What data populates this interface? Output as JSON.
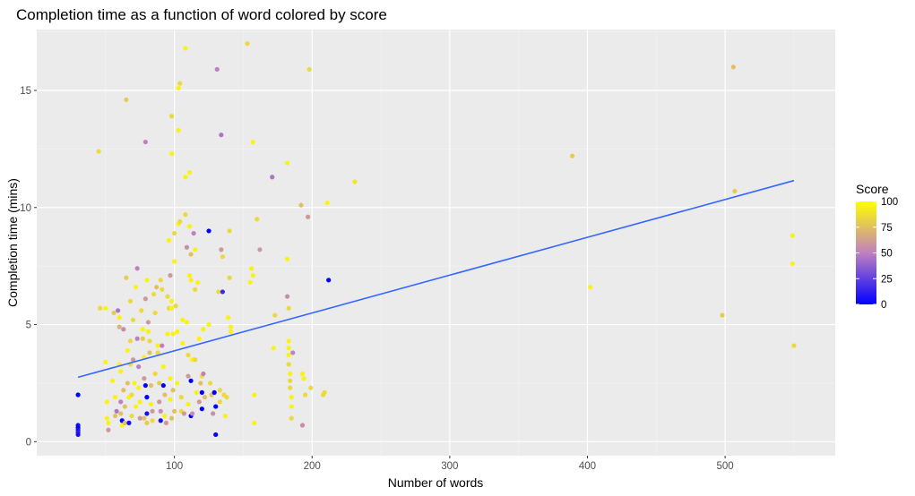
{
  "chart_data": {
    "type": "scatter",
    "title": "Completion time as a function of word colored by score",
    "xlabel": "Number of words",
    "ylabel": "Completion time (mins)",
    "xlim": [
      0,
      580
    ],
    "ylim": [
      -0.6,
      17.6
    ],
    "x_ticks": [
      100,
      200,
      300,
      400,
      500
    ],
    "y_ticks": [
      0,
      5,
      10,
      15
    ],
    "grid": true,
    "legend": {
      "title": "Score",
      "placement": "right",
      "ticks": [
        0,
        25,
        50,
        75,
        100
      ],
      "range": [
        0,
        100
      ],
      "colors": {
        "low": "#0000ff",
        "mid": "#c080c0",
        "high": "#ffff00"
      }
    },
    "trend_line": {
      "color": "#3366ff",
      "x": [
        30,
        550
      ],
      "y": [
        2.75,
        11.15
      ]
    },
    "points": [
      {
        "x": 30,
        "y": 2.0,
        "s": 0
      },
      {
        "x": 30,
        "y": 0.7,
        "s": 5
      },
      {
        "x": 30,
        "y": 0.6,
        "s": 0
      },
      {
        "x": 30,
        "y": 0.5,
        "s": 5
      },
      {
        "x": 30,
        "y": 0.4,
        "s": 10
      },
      {
        "x": 30,
        "y": 0.3,
        "s": 5
      },
      {
        "x": 45,
        "y": 12.4,
        "s": 85
      },
      {
        "x": 46,
        "y": 5.7,
        "s": 85
      },
      {
        "x": 50,
        "y": 5.7,
        "s": 95
      },
      {
        "x": 50,
        "y": 3.4,
        "s": 95
      },
      {
        "x": 51,
        "y": 1.7,
        "s": 95
      },
      {
        "x": 51,
        "y": 1.0,
        "s": 95
      },
      {
        "x": 52,
        "y": 0.8,
        "s": 95
      },
      {
        "x": 52,
        "y": 0.5,
        "s": 60
      },
      {
        "x": 55,
        "y": 2.6,
        "s": 95
      },
      {
        "x": 56,
        "y": 5.5,
        "s": 80
      },
      {
        "x": 57,
        "y": 1.9,
        "s": 95
      },
      {
        "x": 57,
        "y": 1.1,
        "s": 75
      },
      {
        "x": 58,
        "y": 1.3,
        "s": 45
      },
      {
        "x": 59,
        "y": 5.6,
        "s": 45
      },
      {
        "x": 60,
        "y": 5.3,
        "s": 95
      },
      {
        "x": 60,
        "y": 4.9,
        "s": 70
      },
      {
        "x": 60,
        "y": 3.3,
        "s": 95
      },
      {
        "x": 61,
        "y": 3.0,
        "s": 95
      },
      {
        "x": 61,
        "y": 1.7,
        "s": 50
      },
      {
        "x": 61,
        "y": 1.2,
        "s": 75
      },
      {
        "x": 62,
        "y": 0.9,
        "s": 0
      },
      {
        "x": 62,
        "y": 0.7,
        "s": 95
      },
      {
        "x": 63,
        "y": 4.8,
        "s": 55
      },
      {
        "x": 63,
        "y": 2.2,
        "s": 75
      },
      {
        "x": 64,
        "y": 1.5,
        "s": 75
      },
      {
        "x": 64,
        "y": 0.8,
        "s": 75
      },
      {
        "x": 65,
        "y": 14.6,
        "s": 80
      },
      {
        "x": 65,
        "y": 7.0,
        "s": 80
      },
      {
        "x": 66,
        "y": 3.9,
        "s": 95
      },
      {
        "x": 66,
        "y": 2.5,
        "s": 75
      },
      {
        "x": 67,
        "y": 1.9,
        "s": 95
      },
      {
        "x": 67,
        "y": 0.8,
        "s": 5
      },
      {
        "x": 68,
        "y": 6.0,
        "s": 85
      },
      {
        "x": 68,
        "y": 4.3,
        "s": 85
      },
      {
        "x": 68,
        "y": 3.3,
        "s": 85
      },
      {
        "x": 69,
        "y": 2.0,
        "s": 85
      },
      {
        "x": 69,
        "y": 1.1,
        "s": 85
      },
      {
        "x": 70,
        "y": 5.2,
        "s": 85
      },
      {
        "x": 70,
        "y": 3.5,
        "s": 60
      },
      {
        "x": 71,
        "y": 2.5,
        "s": 95
      },
      {
        "x": 72,
        "y": 1.5,
        "s": 95
      },
      {
        "x": 72,
        "y": 6.6,
        "s": 95
      },
      {
        "x": 73,
        "y": 7.4,
        "s": 50
      },
      {
        "x": 73,
        "y": 4.4,
        "s": 50
      },
      {
        "x": 74,
        "y": 3.2,
        "s": 50
      },
      {
        "x": 74,
        "y": 2.3,
        "s": 95
      },
      {
        "x": 75,
        "y": 1.7,
        "s": 95
      },
      {
        "x": 75,
        "y": 1.0,
        "s": 60
      },
      {
        "x": 76,
        "y": 5.6,
        "s": 85
      },
      {
        "x": 77,
        "y": 4.8,
        "s": 95
      },
      {
        "x": 77,
        "y": 4.4,
        "s": 80
      },
      {
        "x": 78,
        "y": 3.6,
        "s": 95
      },
      {
        "x": 78,
        "y": 2.7,
        "s": 60
      },
      {
        "x": 78,
        "y": 1.0,
        "s": 75
      },
      {
        "x": 79,
        "y": 12.8,
        "s": 50
      },
      {
        "x": 79,
        "y": 6.1,
        "s": 60
      },
      {
        "x": 79,
        "y": 2.4,
        "s": 0
      },
      {
        "x": 80,
        "y": 1.9,
        "s": 0
      },
      {
        "x": 80,
        "y": 1.2,
        "s": 5
      },
      {
        "x": 80,
        "y": 0.8,
        "s": 80
      },
      {
        "x": 80,
        "y": 6.9,
        "s": 95
      },
      {
        "x": 81,
        "y": 5.1,
        "s": 60
      },
      {
        "x": 81,
        "y": 4.7,
        "s": 95
      },
      {
        "x": 82,
        "y": 4.3,
        "s": 85
      },
      {
        "x": 82,
        "y": 3.8,
        "s": 75
      },
      {
        "x": 83,
        "y": 2.4,
        "s": 75
      },
      {
        "x": 83,
        "y": 1.6,
        "s": 95
      },
      {
        "x": 84,
        "y": 1.3,
        "s": 60
      },
      {
        "x": 84,
        "y": 0.9,
        "s": 85
      },
      {
        "x": 85,
        "y": 6.3,
        "s": 85
      },
      {
        "x": 86,
        "y": 5.5,
        "s": 85
      },
      {
        "x": 86,
        "y": 2.9,
        "s": 85
      },
      {
        "x": 87,
        "y": 6.6,
        "s": 75
      },
      {
        "x": 88,
        "y": 4.1,
        "s": 95
      },
      {
        "x": 88,
        "y": 3.8,
        "s": 85
      },
      {
        "x": 89,
        "y": 2.5,
        "s": 80
      },
      {
        "x": 89,
        "y": 1.7,
        "s": 60
      },
      {
        "x": 90,
        "y": 1.3,
        "s": 55
      },
      {
        "x": 90,
        "y": 0.9,
        "s": 5
      },
      {
        "x": 90,
        "y": 6.9,
        "s": 85
      },
      {
        "x": 91,
        "y": 6.5,
        "s": 85
      },
      {
        "x": 91,
        "y": 4.1,
        "s": 50
      },
      {
        "x": 92,
        "y": 3.2,
        "s": 95
      },
      {
        "x": 92,
        "y": 2.4,
        "s": 0
      },
      {
        "x": 93,
        "y": 2.0,
        "s": 75
      },
      {
        "x": 93,
        "y": 1.1,
        "s": 95
      },
      {
        "x": 94,
        "y": 0.8,
        "s": 60
      },
      {
        "x": 95,
        "y": 6.2,
        "s": 85
      },
      {
        "x": 95,
        "y": 4.6,
        "s": 95
      },
      {
        "x": 96,
        "y": 5.7,
        "s": 85
      },
      {
        "x": 96,
        "y": 8.6,
        "s": 95
      },
      {
        "x": 97,
        "y": 7.1,
        "s": 60
      },
      {
        "x": 97,
        "y": 2.7,
        "s": 95
      },
      {
        "x": 97,
        "y": 1.8,
        "s": 95
      },
      {
        "x": 98,
        "y": 1.0,
        "s": 75
      },
      {
        "x": 98,
        "y": 6.0,
        "s": 95
      },
      {
        "x": 98,
        "y": 5.7,
        "s": 95
      },
      {
        "x": 98,
        "y": 13.9,
        "s": 85
      },
      {
        "x": 98,
        "y": 12.3,
        "s": 95
      },
      {
        "x": 99,
        "y": 4.6,
        "s": 95
      },
      {
        "x": 99,
        "y": 2.2,
        "s": 75
      },
      {
        "x": 100,
        "y": 1.3,
        "s": 75
      },
      {
        "x": 100,
        "y": 8.9,
        "s": 85
      },
      {
        "x": 100,
        "y": 7.7,
        "s": 95
      },
      {
        "x": 101,
        "y": 5.8,
        "s": 85
      },
      {
        "x": 102,
        "y": 4.7,
        "s": 95
      },
      {
        "x": 102,
        "y": 2.5,
        "s": 95
      },
      {
        "x": 103,
        "y": 15.1,
        "s": 95
      },
      {
        "x": 103,
        "y": 13.3,
        "s": 95
      },
      {
        "x": 103,
        "y": 9.3,
        "s": 95
      },
      {
        "x": 104,
        "y": 15.3,
        "s": 85
      },
      {
        "x": 104,
        "y": 9.4,
        "s": 85
      },
      {
        "x": 105,
        "y": 1.9,
        "s": 85
      },
      {
        "x": 105,
        "y": 1.3,
        "s": 85
      },
      {
        "x": 106,
        "y": 4.2,
        "s": 95
      },
      {
        "x": 106,
        "y": 5.2,
        "s": 95
      },
      {
        "x": 107,
        "y": 1.2,
        "s": 60
      },
      {
        "x": 108,
        "y": 11.3,
        "s": 95
      },
      {
        "x": 108,
        "y": 9.7,
        "s": 85
      },
      {
        "x": 108,
        "y": 16.8,
        "s": 95
      },
      {
        "x": 109,
        "y": 8.3,
        "s": 55
      },
      {
        "x": 109,
        "y": 5.1,
        "s": 95
      },
      {
        "x": 110,
        "y": 3.7,
        "s": 85
      },
      {
        "x": 110,
        "y": 2.8,
        "s": 60
      },
      {
        "x": 110,
        "y": 1.6,
        "s": 95
      },
      {
        "x": 111,
        "y": 9.2,
        "s": 95
      },
      {
        "x": 111,
        "y": 11.5,
        "s": 95
      },
      {
        "x": 111,
        "y": 7.1,
        "s": 95
      },
      {
        "x": 112,
        "y": 8.0,
        "s": 75
      },
      {
        "x": 112,
        "y": 6.9,
        "s": 95
      },
      {
        "x": 112,
        "y": 2.6,
        "s": 0
      },
      {
        "x": 112,
        "y": 1.1,
        "s": 0
      },
      {
        "x": 113,
        "y": 3.5,
        "s": 95
      },
      {
        "x": 113,
        "y": 1.2,
        "s": 55
      },
      {
        "x": 114,
        "y": 8.9,
        "s": 50
      },
      {
        "x": 115,
        "y": 8.2,
        "s": 95
      },
      {
        "x": 115,
        "y": 6.5,
        "s": 85
      },
      {
        "x": 115,
        "y": 3.5,
        "s": 85
      },
      {
        "x": 116,
        "y": 2.1,
        "s": 95
      },
      {
        "x": 117,
        "y": 6.8,
        "s": 95
      },
      {
        "x": 118,
        "y": 4.4,
        "s": 95
      },
      {
        "x": 118,
        "y": 1.7,
        "s": 60
      },
      {
        "x": 119,
        "y": 2.5,
        "s": 75
      },
      {
        "x": 120,
        "y": 2.8,
        "s": 85
      },
      {
        "x": 120,
        "y": 2.1,
        "s": 0
      },
      {
        "x": 120,
        "y": 1.4,
        "s": 0
      },
      {
        "x": 121,
        "y": 2.9,
        "s": 50
      },
      {
        "x": 121,
        "y": 4.8,
        "s": 95
      },
      {
        "x": 122,
        "y": 1.9,
        "s": 75
      },
      {
        "x": 125,
        "y": 9.0,
        "s": 0
      },
      {
        "x": 125,
        "y": 5.0,
        "s": 95
      },
      {
        "x": 126,
        "y": 2.5,
        "s": 85
      },
      {
        "x": 127,
        "y": 2.0,
        "s": 75
      },
      {
        "x": 128,
        "y": 1.2,
        "s": 55
      },
      {
        "x": 129,
        "y": 2.1,
        "s": 0
      },
      {
        "x": 130,
        "y": 1.5,
        "s": 0
      },
      {
        "x": 130,
        "y": 0.3,
        "s": 0
      },
      {
        "x": 131,
        "y": 15.9,
        "s": 50
      },
      {
        "x": 132,
        "y": 6.4,
        "s": 85
      },
      {
        "x": 133,
        "y": 2.2,
        "s": 85
      },
      {
        "x": 133,
        "y": 1.7,
        "s": 85
      },
      {
        "x": 134,
        "y": 13.1,
        "s": 45
      },
      {
        "x": 134,
        "y": 8.2,
        "s": 60
      },
      {
        "x": 135,
        "y": 7.9,
        "s": 85
      },
      {
        "x": 135,
        "y": 6.4,
        "s": 15
      },
      {
        "x": 136,
        "y": 2.0,
        "s": 85
      },
      {
        "x": 137,
        "y": 1.1,
        "s": 95
      },
      {
        "x": 138,
        "y": 1.9,
        "s": 85
      },
      {
        "x": 139,
        "y": 5.3,
        "s": 95
      },
      {
        "x": 140,
        "y": 9.0,
        "s": 85
      },
      {
        "x": 140,
        "y": 7.0,
        "s": 85
      },
      {
        "x": 141,
        "y": 4.9,
        "s": 95
      },
      {
        "x": 141,
        "y": 4.7,
        "s": 95
      },
      {
        "x": 153,
        "y": 17.0,
        "s": 85
      },
      {
        "x": 155,
        "y": 6.8,
        "s": 95
      },
      {
        "x": 156,
        "y": 7.4,
        "s": 95
      },
      {
        "x": 157,
        "y": 12.8,
        "s": 95
      },
      {
        "x": 157,
        "y": 7.1,
        "s": 95
      },
      {
        "x": 158,
        "y": 2.0,
        "s": 95
      },
      {
        "x": 158,
        "y": 0.8,
        "s": 95
      },
      {
        "x": 160,
        "y": 9.5,
        "s": 85
      },
      {
        "x": 162,
        "y": 8.2,
        "s": 60
      },
      {
        "x": 171,
        "y": 11.3,
        "s": 45
      },
      {
        "x": 172,
        "y": 4.0,
        "s": 95
      },
      {
        "x": 173,
        "y": 5.4,
        "s": 85
      },
      {
        "x": 182,
        "y": 11.9,
        "s": 95
      },
      {
        "x": 182,
        "y": 7.8,
        "s": 95
      },
      {
        "x": 182,
        "y": 6.2,
        "s": 55
      },
      {
        "x": 183,
        "y": 5.7,
        "s": 85
      },
      {
        "x": 183,
        "y": 4.3,
        "s": 95
      },
      {
        "x": 183,
        "y": 4.0,
        "s": 95
      },
      {
        "x": 183,
        "y": 3.7,
        "s": 95
      },
      {
        "x": 183,
        "y": 3.3,
        "s": 85
      },
      {
        "x": 184,
        "y": 2.9,
        "s": 95
      },
      {
        "x": 184,
        "y": 2.6,
        "s": 85
      },
      {
        "x": 184,
        "y": 2.3,
        "s": 85
      },
      {
        "x": 185,
        "y": 1.9,
        "s": 95
      },
      {
        "x": 185,
        "y": 1.5,
        "s": 95
      },
      {
        "x": 185,
        "y": 1.0,
        "s": 85
      },
      {
        "x": 186,
        "y": 3.8,
        "s": 50
      },
      {
        "x": 192,
        "y": 10.1,
        "s": 75
      },
      {
        "x": 193,
        "y": 2.9,
        "s": 95
      },
      {
        "x": 193,
        "y": 0.7,
        "s": 55
      },
      {
        "x": 194,
        "y": 2.7,
        "s": 95
      },
      {
        "x": 195,
        "y": 2.0,
        "s": 85
      },
      {
        "x": 197,
        "y": 9.6,
        "s": 60
      },
      {
        "x": 198,
        "y": 15.9,
        "s": 85
      },
      {
        "x": 199,
        "y": 2.3,
        "s": 85
      },
      {
        "x": 208,
        "y": 2.0,
        "s": 85
      },
      {
        "x": 209,
        "y": 2.1,
        "s": 85
      },
      {
        "x": 211,
        "y": 10.2,
        "s": 95
      },
      {
        "x": 212,
        "y": 6.9,
        "s": 0
      },
      {
        "x": 231,
        "y": 11.1,
        "s": 90
      },
      {
        "x": 389,
        "y": 12.2,
        "s": 80
      },
      {
        "x": 402,
        "y": 6.6,
        "s": 95
      },
      {
        "x": 498,
        "y": 5.4,
        "s": 80
      },
      {
        "x": 506,
        "y": 16.0,
        "s": 75
      },
      {
        "x": 507,
        "y": 10.7,
        "s": 80
      },
      {
        "x": 549,
        "y": 8.8,
        "s": 95
      },
      {
        "x": 549,
        "y": 7.6,
        "s": 95
      },
      {
        "x": 550,
        "y": 4.1,
        "s": 85
      }
    ]
  }
}
